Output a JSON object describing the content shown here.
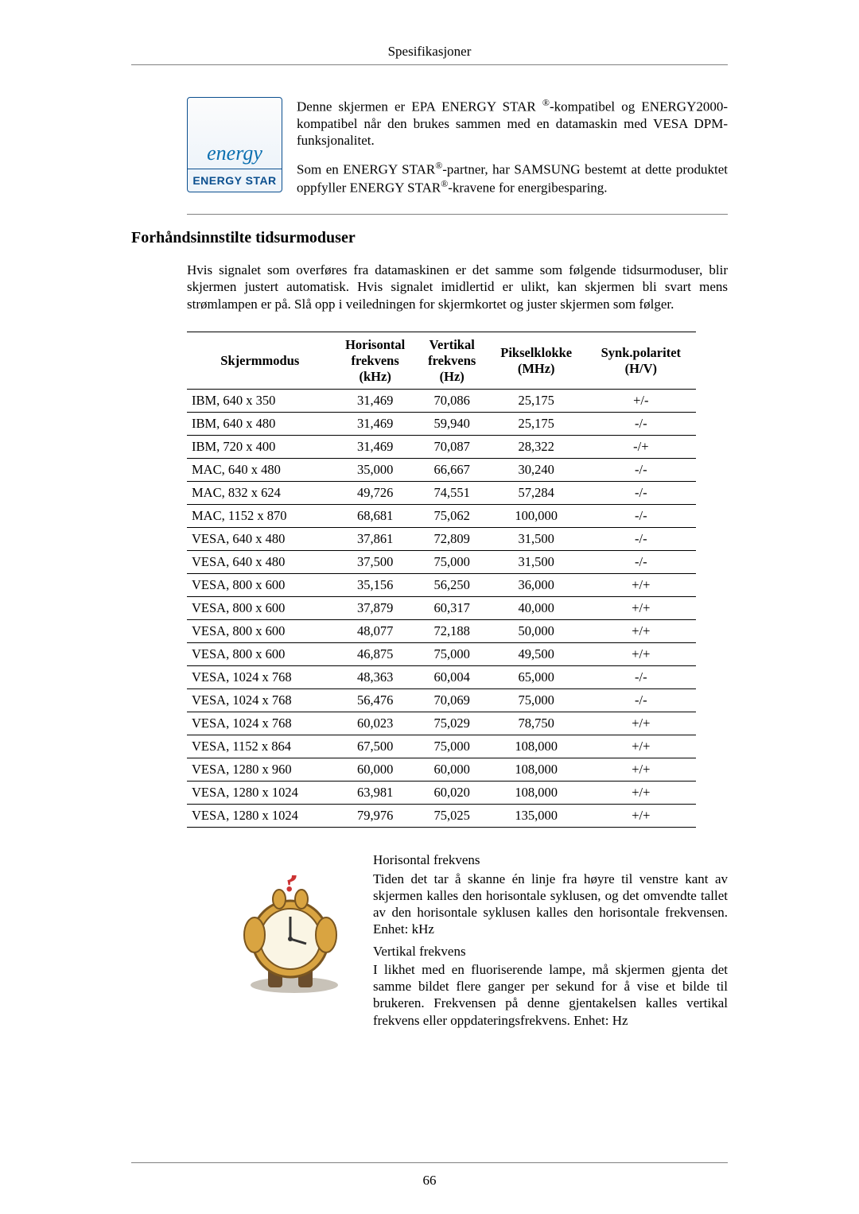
{
  "header": {
    "title": "Spesifikasjoner"
  },
  "energy": {
    "logo_script": "energy",
    "logo_label": "ENERGY STAR",
    "para1_a": "Denne skjermen er EPA ENERGY STAR ",
    "para1_b": "-kompatibel og ENERGY2000-kompatibel når den brukes sammen med en datamaskin med VESA DPM-funksjonalitet.",
    "para2_a": "Som en ENERGY STAR",
    "para2_b": "-partner, har SAMSUNG bestemt at dette produktet oppfyller ENERGY STAR",
    "para2_c": "-kravene for energibesparing.",
    "sup": "®"
  },
  "section": {
    "title": "Forhåndsinnstilte tidsurmoduser"
  },
  "intro": "Hvis signalet som overføres fra datamaskinen er det samme som følgende tidsurmoduser, blir skjermen justert automatisk. Hvis signalet imidlertid er ulikt, kan skjermen bli svart mens strømlampen er på. Slå opp i veiledningen for skjermkortet og juster skjermen som følger.",
  "table": {
    "columns": [
      "Skjermmodus",
      "Horisontal frekvens (kHz)",
      "Vertikal frekvens (Hz)",
      "Pikselklokke (MHz)",
      "Synk.polaritet (H/V)"
    ],
    "col_br": [
      [
        "Skjermmodus"
      ],
      [
        "Horisontal",
        "frekvens",
        "(kHz)"
      ],
      [
        "Vertikal",
        "frekvens",
        "(Hz)"
      ],
      [
        "Pikselklokke",
        "(MHz)"
      ],
      [
        "Synk.polaritet",
        "(H/V)"
      ]
    ],
    "rows": [
      [
        "IBM, 640 x 350",
        "31,469",
        "70,086",
        "25,175",
        "+/-"
      ],
      [
        "IBM, 640 x 480",
        "31,469",
        "59,940",
        "25,175",
        "-/-"
      ],
      [
        "IBM, 720 x 400",
        "31,469",
        "70,087",
        "28,322",
        "-/+"
      ],
      [
        "MAC, 640 x 480",
        "35,000",
        "66,667",
        "30,240",
        "-/-"
      ],
      [
        "MAC, 832 x 624",
        "49,726",
        "74,551",
        "57,284",
        "-/-"
      ],
      [
        "MAC, 1152 x 870",
        "68,681",
        "75,062",
        "100,000",
        "-/-"
      ],
      [
        "VESA, 640 x 480",
        "37,861",
        "72,809",
        "31,500",
        "-/-"
      ],
      [
        "VESA, 640 x 480",
        "37,500",
        "75,000",
        "31,500",
        "-/-"
      ],
      [
        "VESA, 800 x 600",
        "35,156",
        "56,250",
        "36,000",
        "+/+"
      ],
      [
        "VESA, 800 x 600",
        "37,879",
        "60,317",
        "40,000",
        "+/+"
      ],
      [
        "VESA, 800 x 600",
        "48,077",
        "72,188",
        "50,000",
        "+/+"
      ],
      [
        "VESA, 800 x 600",
        "46,875",
        "75,000",
        "49,500",
        "+/+"
      ],
      [
        "VESA, 1024 x 768",
        "48,363",
        "60,004",
        "65,000",
        "-/-"
      ],
      [
        "VESA, 1024 x 768",
        "56,476",
        "70,069",
        "75,000",
        "-/-"
      ],
      [
        "VESA, 1024 x 768",
        "60,023",
        "75,029",
        "78,750",
        "+/+"
      ],
      [
        "VESA, 1152 x 864",
        "67,500",
        "75,000",
        "108,000",
        "+/+"
      ],
      [
        "VESA, 1280 x 960",
        "60,000",
        "60,000",
        "108,000",
        "+/+"
      ],
      [
        "VESA, 1280 x 1024",
        "63,981",
        "60,020",
        "108,000",
        "+/+"
      ],
      [
        "VESA, 1280 x 1024",
        "79,976",
        "75,025",
        "135,000",
        "+/+"
      ]
    ]
  },
  "freq": {
    "h_title": "Horisontal frekvens",
    "h_body": "Tiden det tar å skanne én linje fra høyre til venstre kant av skjermen kalles den horisontale syklusen, og det omvendte tallet av den horisontale syklusen kalles den horisontale frekvensen. Enhet: kHz",
    "v_title": "Vertikal frekvens",
    "v_body": "I likhet med en fluoriserende lampe, må skjermen gjenta det samme bildet flere ganger per sekund for å vise et bilde til brukeren. Frekvensen på denne gjentakelsen kalles vertikal frekvens eller oppdateringsfrekvens. Enhet: Hz"
  },
  "footer": {
    "page_number": "66"
  }
}
